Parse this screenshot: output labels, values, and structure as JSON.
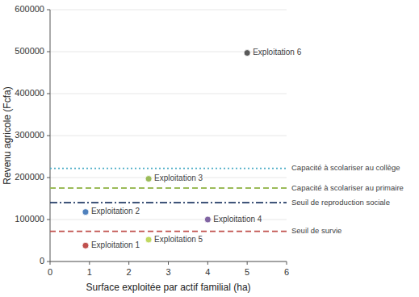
{
  "chart_data": {
    "type": "scatter",
    "xlabel": "Surface exploitée par actif familial (ha)",
    "ylabel": "Revenu agricole (Fcfa)",
    "xlim": [
      0,
      6
    ],
    "ylim": [
      0,
      600000
    ],
    "xticks": [
      0,
      1,
      2,
      3,
      4,
      5,
      6
    ],
    "yticks": [
      0,
      100000,
      200000,
      300000,
      400000,
      500000,
      600000
    ],
    "grid": true,
    "series": [
      {
        "name": "Exploitation 1",
        "color": "#C0504D",
        "x": [
          0.9
        ],
        "values": [
          38000
        ]
      },
      {
        "name": "Exploitation 2",
        "color": "#4F81BD",
        "x": [
          0.9
        ],
        "values": [
          118000
        ]
      },
      {
        "name": "Exploitation 3",
        "color": "#9BBB59",
        "x": [
          2.5
        ],
        "values": [
          197000
        ]
      },
      {
        "name": "Exploitation 4",
        "color": "#8064A2",
        "x": [
          4.0
        ],
        "values": [
          100000
        ]
      },
      {
        "name": "Exploitation 5",
        "color": "#C0D860",
        "x": [
          2.5
        ],
        "values": [
          52000
        ]
      },
      {
        "name": "Exploitation 6",
        "color": "#595959",
        "x": [
          5.0
        ],
        "values": [
          497000
        ]
      },
      {
        "name": "Capacité à scolariser au collège",
        "type": "hline",
        "color": "#4BACC6",
        "line_style": "dotted",
        "values": [
          222000
        ]
      },
      {
        "name": "Capacité à scolariser au primaire",
        "type": "hline",
        "color": "#9BBB59",
        "line_style": "dashed",
        "values": [
          175000
        ]
      },
      {
        "name": "Seuil de reproduction sociale",
        "type": "hline",
        "color": "#1F3864",
        "line_style": "dashdot",
        "values": [
          140000
        ]
      },
      {
        "name": "Seuil de survie",
        "type": "hline",
        "color": "#C0504D",
        "line_style": "dashed",
        "values": [
          72000
        ]
      }
    ]
  }
}
